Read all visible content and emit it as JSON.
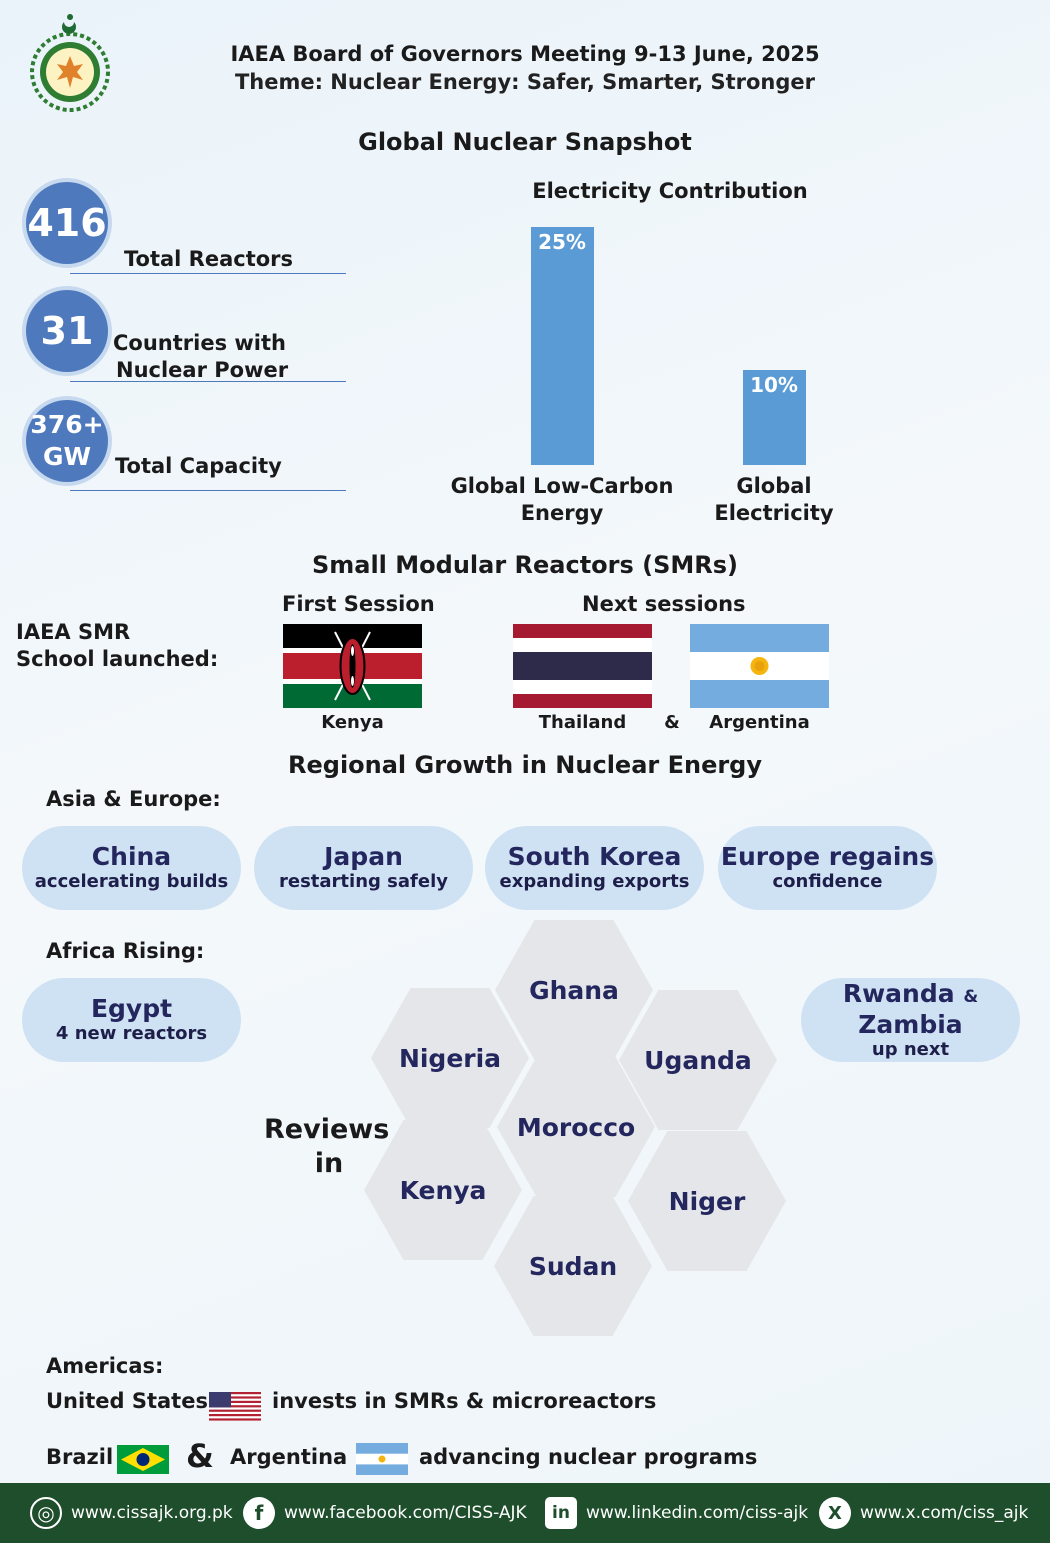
{
  "header": {
    "title": "IAEA Board of Governors Meeting  9-13 June, 2025",
    "theme": "Theme: Nuclear Energy: Safer, Smarter, Stronger"
  },
  "snapshot": {
    "title": "Global Nuclear Snapshot",
    "stats": [
      {
        "value": "416",
        "label": "Total Reactors"
      },
      {
        "value": "31",
        "label_line1": "Countries with",
        "label_line2": "Nuclear Power"
      },
      {
        "value_line1": "376+",
        "value_line2": "GW",
        "label": "Total Capacity"
      }
    ]
  },
  "chart_data": {
    "type": "bar",
    "title": "Electricity Contribution",
    "categories": [
      "Global Low-Carbon Energy",
      "Global Electricity"
    ],
    "category_lines": [
      [
        "Global Low-Carbon",
        "Energy"
      ],
      [
        "Global",
        "Electricity"
      ]
    ],
    "values": [
      25,
      10
    ],
    "value_labels": [
      "25%",
      "10%"
    ],
    "ylim": [
      0,
      25
    ],
    "grid": false,
    "color": "#5b9bd5"
  },
  "smr": {
    "title": "Small Modular Reactors (SMRs)",
    "label_line1": "IAEA SMR",
    "label_line2": "School launched:",
    "first_session": "First Session",
    "next_sessions": "Next sessions",
    "flags": [
      "Kenya",
      "Thailand",
      "Argentina"
    ],
    "amp": "&"
  },
  "regional": {
    "title": "Regional Growth in Nuclear Energy",
    "asia_europe_label": "Asia & Europe:",
    "asia_pills": [
      {
        "name": "China",
        "note": "accelerating builds"
      },
      {
        "name": "Japan",
        "note": "restarting safely"
      },
      {
        "name": "South Korea",
        "note": "expanding exports"
      },
      {
        "name": "Europe regains",
        "note": "confidence"
      }
    ],
    "africa_label": "Africa Rising:",
    "egypt": {
      "name": "Egypt",
      "note": "4 new reactors"
    },
    "rwanda": {
      "name1": "Rwanda",
      "amp": "&",
      "name2": "Zambia",
      "note": "up next"
    },
    "reviews_line1": "Reviews",
    "reviews_line2": "in",
    "hexes": [
      "Ghana",
      "Nigeria",
      "Uganda",
      "Morocco",
      "Kenya",
      "Niger",
      "Sudan"
    ]
  },
  "americas": {
    "label": "Americas:",
    "us": "United States",
    "us_text": "invests in SMRs & microreactors",
    "brazil": "Brazil",
    "amp": "&",
    "argentina": "Argentina",
    "br_text": "advancing nuclear programs"
  },
  "footer": {
    "web": "www.cissajk.org.pk",
    "facebook": "www.facebook.com/CISS-AJK",
    "linkedin": "www.linkedin.com/ciss-ajk",
    "x": "www.x.com/ciss_ajk"
  },
  "colors": {
    "accent": "#4f79bd",
    "bar": "#5b9bd5",
    "pill": "#cfe2f3",
    "hex": "#e4e6e9",
    "navy_text": "#24265e",
    "footer": "#1f4e2c"
  }
}
